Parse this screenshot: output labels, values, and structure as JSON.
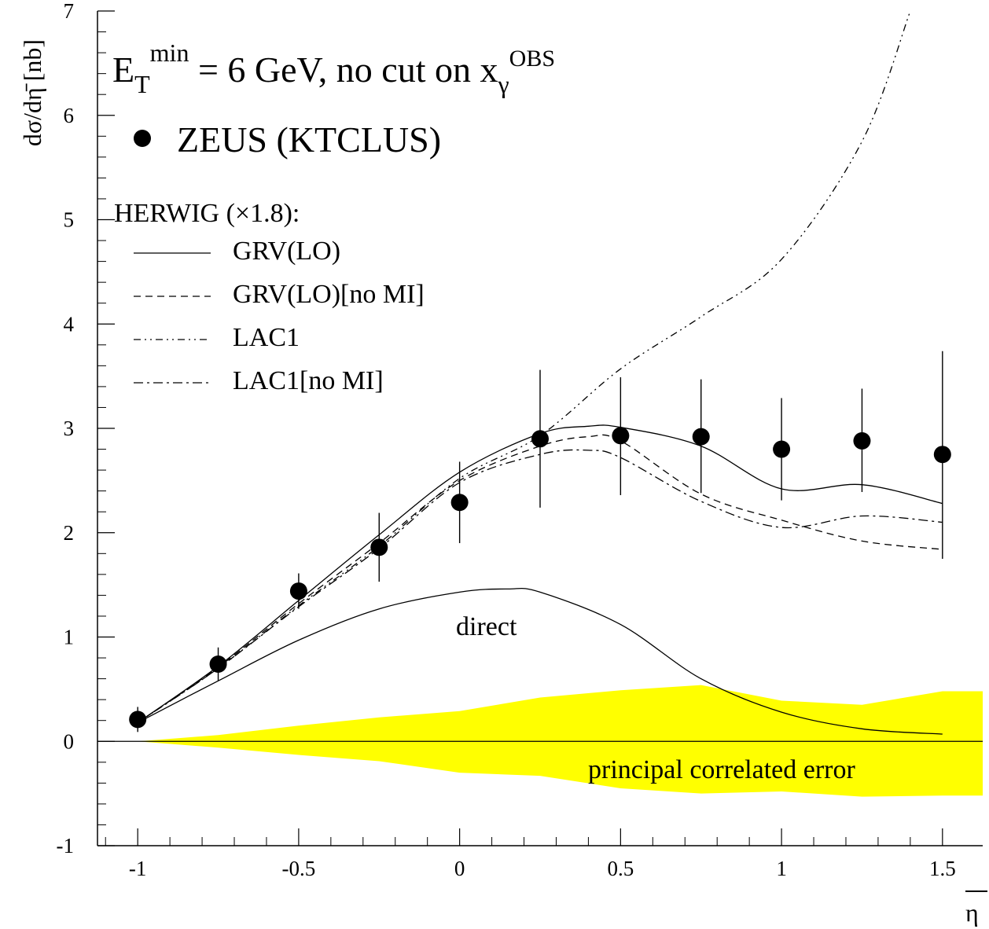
{
  "chart_data": {
    "type": "scatter",
    "ylabel": "dσ/dη̄ [nb]",
    "xlabel": "η̄",
    "xlim": [
      -1.125,
      1.625
    ],
    "ylim": [
      -1,
      7
    ],
    "x_ticks": [
      -1,
      -0.5,
      0,
      0.5,
      1,
      1.5
    ],
    "x_tick_labels": [
      "-1",
      "-0.5",
      "0",
      "0.5",
      "1",
      "1.5"
    ],
    "y_ticks": [
      -1,
      0,
      1,
      2,
      3,
      4,
      5,
      6,
      7
    ],
    "y_tick_labels": [
      "-1",
      "0",
      "1",
      "2",
      "3",
      "4",
      "5",
      "6",
      "7"
    ],
    "title": {
      "et_prefix": "E",
      "et_sub": "T",
      "et_sup": "min",
      "middle": " = 6 GeV, no cut on x",
      "x_sub": "γ",
      "x_sup": "OBS"
    },
    "herwig_label": "HERWIG (×1.8):",
    "annotation_direct": "direct",
    "annotation_band": "principal correlated error",
    "band_color": "#ffff00",
    "data_series": {
      "name": "ZEUS (KTCLUS)",
      "x": [
        -1,
        -0.75,
        -0.5,
        -0.25,
        0,
        0.25,
        0.5,
        0.75,
        1,
        1.25,
        1.5
      ],
      "y": [
        0.21,
        0.74,
        1.44,
        1.86,
        2.29,
        2.9,
        2.93,
        2.92,
        2.8,
        2.88,
        2.75
      ],
      "err_low": [
        0.12,
        0.16,
        0.17,
        0.33,
        0.39,
        0.66,
        0.57,
        0.54,
        0.49,
        0.49,
        1.0
      ],
      "err_high": [
        0.12,
        0.16,
        0.17,
        0.33,
        0.39,
        0.66,
        0.56,
        0.55,
        0.49,
        0.5,
        0.99
      ]
    },
    "series": [
      {
        "name": "GRV(LO)",
        "style": "solid",
        "x": [
          -1,
          -0.75,
          -0.5,
          -0.25,
          0,
          0.25,
          0.4,
          0.5,
          0.75,
          1,
          1.25,
          1.5
        ],
        "y": [
          0.18,
          0.72,
          1.35,
          1.98,
          2.58,
          2.95,
          3.02,
          3.01,
          2.83,
          2.42,
          2.46,
          2.28
        ]
      },
      {
        "name": "GRV(LO)[no MI]",
        "style": "dashed",
        "x": [
          -1,
          -0.75,
          -0.5,
          -0.25,
          0,
          0.25,
          0.4,
          0.5,
          0.75,
          1,
          1.25,
          1.5
        ],
        "y": [
          0.18,
          0.71,
          1.32,
          1.9,
          2.5,
          2.83,
          2.92,
          2.88,
          2.37,
          2.12,
          1.92,
          1.84
        ]
      },
      {
        "name": "LAC1",
        "style": "dash-dot-dot",
        "x": [
          -1,
          -0.75,
          -0.5,
          -0.25,
          0,
          0.25,
          0.5,
          0.75,
          1,
          1.25,
          1.4
        ],
        "y": [
          0.18,
          0.7,
          1.3,
          1.87,
          2.52,
          2.93,
          3.57,
          4.07,
          4.62,
          5.75,
          7.0
        ]
      },
      {
        "name": "LAC1[no MI]",
        "style": "dash-dot",
        "x": [
          -1,
          -0.75,
          -0.5,
          -0.25,
          0,
          0.25,
          0.4,
          0.5,
          0.75,
          1,
          1.25,
          1.5
        ],
        "y": [
          0.18,
          0.7,
          1.29,
          1.85,
          2.48,
          2.75,
          2.79,
          2.72,
          2.3,
          2.05,
          2.16,
          2.1
        ]
      }
    ],
    "direct_curve": {
      "x": [
        -1,
        -0.75,
        -0.5,
        -0.25,
        0,
        0.15,
        0.25,
        0.5,
        0.75,
        1,
        1.25,
        1.5
      ],
      "y": [
        0.18,
        0.58,
        0.97,
        1.27,
        1.43,
        1.46,
        1.43,
        1.12,
        0.6,
        0.28,
        0.12,
        0.07
      ]
    },
    "error_band": {
      "x": [
        -1.125,
        -1,
        -0.75,
        -0.5,
        -0.25,
        0,
        0.25,
        0.5,
        0.75,
        1,
        1.25,
        1.5,
        1.625
      ],
      "upper": [
        0.0,
        0.0,
        0.06,
        0.15,
        0.23,
        0.29,
        0.42,
        0.49,
        0.54,
        0.39,
        0.35,
        0.48,
        0.48
      ],
      "lower": [
        0.0,
        0.0,
        -0.06,
        -0.13,
        -0.19,
        -0.3,
        -0.33,
        -0.45,
        -0.5,
        -0.48,
        -0.53,
        -0.52,
        -0.52
      ]
    }
  }
}
